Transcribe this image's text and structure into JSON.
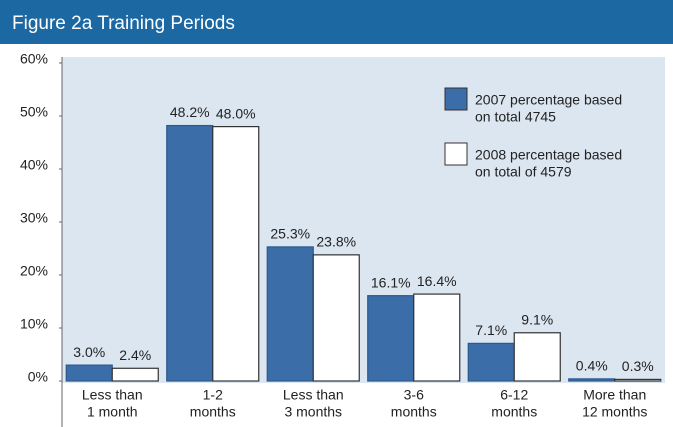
{
  "chart_data": {
    "type": "bar",
    "title": "Figure 2a  Training Periods",
    "categories": [
      [
        "Less than",
        "1 month"
      ],
      [
        "1-2",
        "months"
      ],
      [
        "Less than",
        "3 months"
      ],
      [
        "3-6",
        "months"
      ],
      [
        "6-12",
        "months"
      ],
      [
        "More than",
        "12 months"
      ]
    ],
    "series": [
      {
        "name": [
          "2007 percentage based",
          "on total 4745"
        ],
        "color": "#3b6ea8",
        "values": [
          3.0,
          48.2,
          25.3,
          16.1,
          7.1,
          0.4
        ],
        "value_labels": [
          "3.0%",
          "48.2%",
          "25.3%",
          "16.1%",
          "7.1%",
          "0.4%"
        ]
      },
      {
        "name": [
          "2008 percentage based",
          "on total of 4579"
        ],
        "color": "#ffffff",
        "values": [
          2.4,
          48.0,
          23.8,
          16.4,
          9.1,
          0.3
        ],
        "value_labels": [
          "2.4%",
          "48.0%",
          "23.8%",
          "16.4%",
          "9.1%",
          "0.3%"
        ]
      }
    ],
    "ylim": [
      0,
      60
    ],
    "yticks": [
      {
        "value": 0,
        "label": "0%"
      },
      {
        "value": 10,
        "label": "10%"
      },
      {
        "value": 20,
        "label": "20%"
      },
      {
        "value": 30,
        "label": "30%"
      },
      {
        "value": 40,
        "label": "40%"
      },
      {
        "value": 50,
        "label": "50%"
      },
      {
        "value": 60,
        "label": "60%"
      }
    ]
  }
}
